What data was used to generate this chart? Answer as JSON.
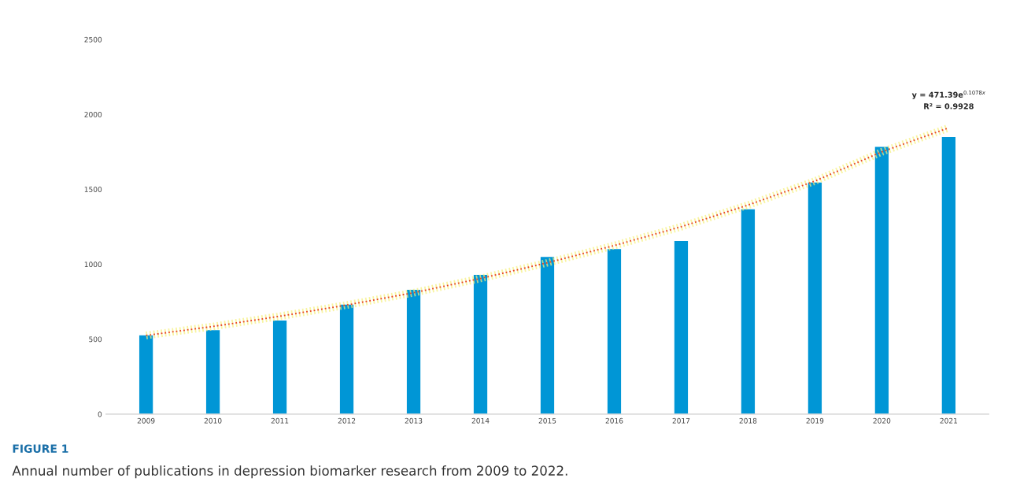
{
  "chart_data": {
    "type": "bar",
    "categories": [
      "2009",
      "2010",
      "2011",
      "2012",
      "2013",
      "2014",
      "2015",
      "2016",
      "2017",
      "2018",
      "2019",
      "2020",
      "2021"
    ],
    "series": [
      {
        "color": "#0096d6",
        "values": [
          529,
          564,
          628,
          734,
          833,
          933,
          1052,
          1105,
          1159,
          1371,
          1549,
          1787,
          1852
        ]
      },
      {
        "type": "line",
        "color": "#e8402a",
        "line_style": "dotted",
        "values": [
          525,
          585,
          653,
          728,
          810,
          905,
          1010,
          1125,
          1250,
          1395,
          1555,
          1750,
          1910
        ]
      }
    ],
    "ylim": [
      0,
      2500
    ],
    "yticks": [
      0,
      500,
      1000,
      1500,
      2000,
      2500
    ],
    "grid": false,
    "legend": false,
    "annotations": [
      "y = 471.39e$^{0.1078x}$",
      "R² = 0.9928",
      "FIGURE 1",
      "Annual number of publications in depression biomarker research from 2009 to 2022."
    ]
  }
}
